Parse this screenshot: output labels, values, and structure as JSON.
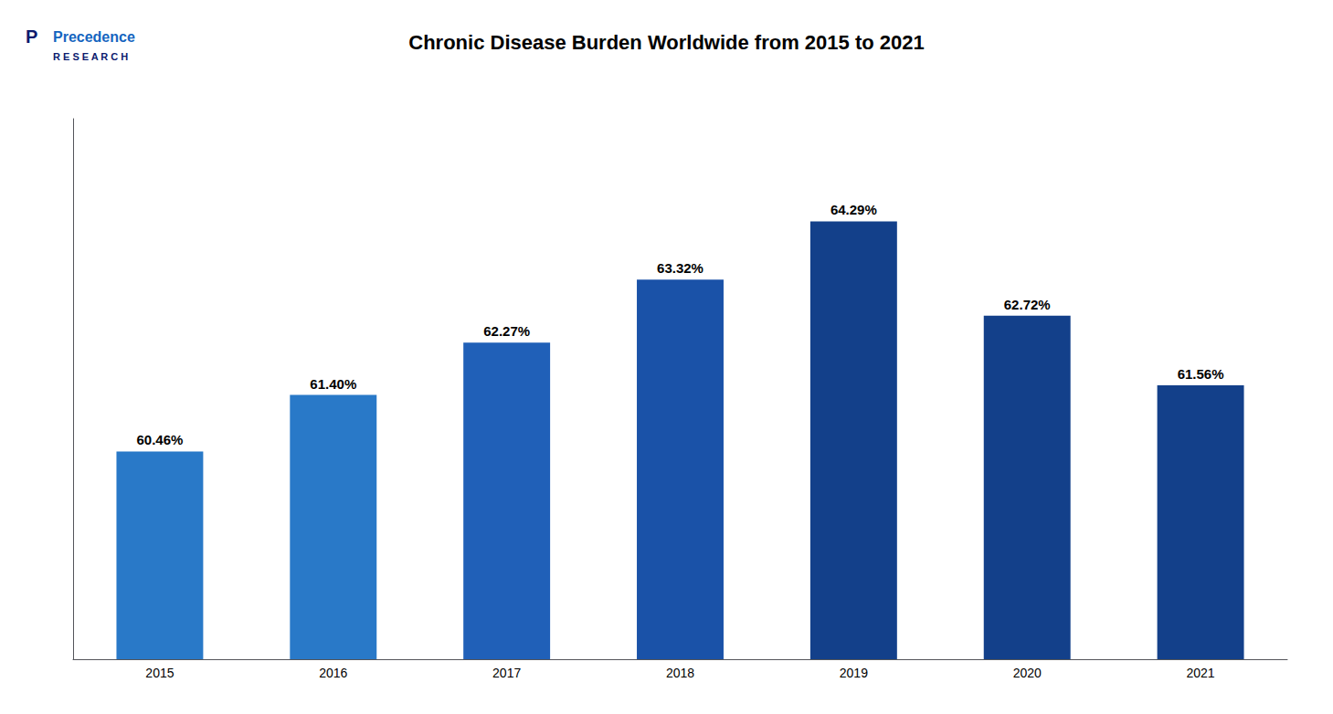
{
  "chart_data": {
    "type": "bar",
    "title": "Chronic Disease Burden Worldwide from 2015 to 2021",
    "categories": [
      "2015",
      "2016",
      "2017",
      "2018",
      "2019",
      "2020",
      "2021"
    ],
    "values": [
      60.46,
      61.4,
      62.27,
      63.32,
      64.29,
      62.72,
      61.56
    ],
    "value_labels": [
      "60.46%",
      "61.40%",
      "62.27%",
      "63.32%",
      "64.29%",
      "62.72%",
      "61.56%"
    ],
    "colors": [
      "#2979C8",
      "#2979C8",
      "#2060B8",
      "#1A52A8",
      "#13408A",
      "#13408A",
      "#13408A"
    ],
    "ylim": [
      57,
      66
    ],
    "grid": false,
    "data_labels": true,
    "tick_labels": "x",
    "annotations": [
      "P",
      "Precedence",
      "R E S E A R C H"
    ]
  }
}
